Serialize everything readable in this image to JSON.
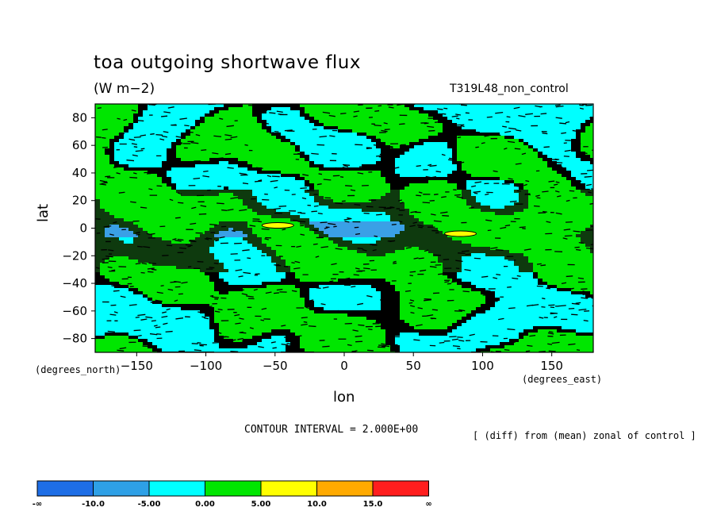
{
  "chart_data": {
    "type": "heatmap",
    "title": "toa outgoing shortwave flux",
    "units": "(W m−2)",
    "run_name": "T319L48_non_control",
    "xlabel": "lon",
    "xlabel_units": "(degrees_east)",
    "ylabel": "lat",
    "ylabel_units": "(degrees_north)",
    "xlim": [
      -180,
      180
    ],
    "ylim": [
      -90,
      90
    ],
    "x_ticks": [
      -150,
      -100,
      -50,
      0,
      50,
      100,
      150
    ],
    "y_ticks": [
      80,
      60,
      40,
      20,
      0,
      -20,
      -40,
      -60,
      -80
    ],
    "contour_interval": "CONTOUR INTERVAL = 2.000E+00",
    "note": "[ (diff) from (mean) zonal of control ]",
    "colorbar": {
      "labels": [
        "-∞",
        "-10.0",
        "-5.00",
        "0.00",
        "5.00",
        "10.0",
        "15.0",
        "∞"
      ],
      "colors": [
        "#1e6ee6",
        "#2ea0e6",
        "#00ffff",
        "#00e600",
        "#ffff00",
        "#ffaa00",
        "#ff1e1e"
      ]
    },
    "highlights": [
      {
        "lon": -48,
        "lat": 2,
        "level": "5.00 to 10.0"
      },
      {
        "lon": 84,
        "lat": -4,
        "level": "5.00 to 10.0"
      }
    ]
  }
}
